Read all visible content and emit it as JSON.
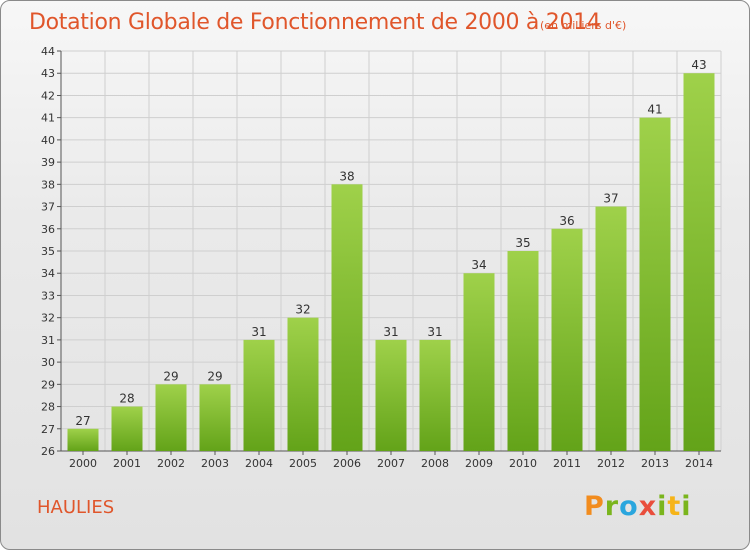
{
  "header": {
    "title": "Dotation Globale de Fonctionnement de 2000 à 2014",
    "units": "(en milliers d'€)"
  },
  "commune": "HAULIES",
  "logo": {
    "text": "Proxiti"
  },
  "colors": {
    "bar_light": "#9fd14a",
    "bar_dark": "#63a319",
    "title": "#e0562b",
    "grid": "#cfcfcf"
  },
  "chart_data": {
    "type": "bar",
    "title": "Dotation Globale de Fonctionnement de 2000 à 2014",
    "subtitle": "(en milliers d'€)",
    "xlabel": "",
    "ylabel": "",
    "categories": [
      "2000",
      "2001",
      "2002",
      "2003",
      "2004",
      "2005",
      "2006",
      "2007",
      "2008",
      "2009",
      "2010",
      "2011",
      "2012",
      "2013",
      "2014"
    ],
    "values": [
      27,
      28,
      29,
      29,
      31,
      32,
      38,
      31,
      31,
      34,
      35,
      36,
      37,
      41,
      43
    ],
    "ylim": [
      26,
      44
    ],
    "yticks": [
      26,
      27,
      28,
      29,
      30,
      31,
      32,
      33,
      34,
      35,
      36,
      37,
      38,
      39,
      40,
      41,
      42,
      43,
      44
    ],
    "grid": true,
    "data_labels": true
  }
}
